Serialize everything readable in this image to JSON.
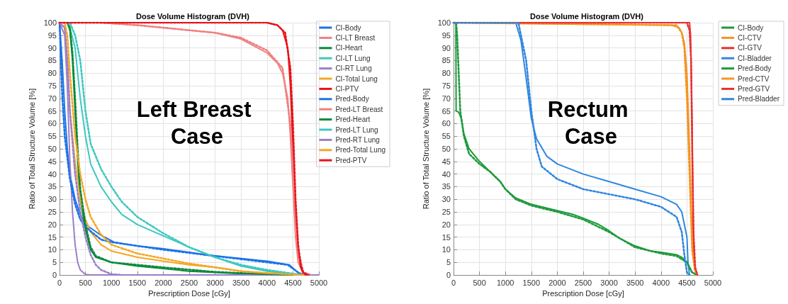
{
  "chart_data": [
    {
      "type": "line",
      "title": "Dose Volume Histogram (DVH)",
      "xlabel": "Prescription Dose [cGy]",
      "ylabel": "Ratio of Total Structure Volume [%]",
      "annotations": [
        "Left Breast Case"
      ],
      "xlim": [
        0,
        5000
      ],
      "xticks": [
        0,
        500,
        1000,
        1500,
        2000,
        2500,
        3000,
        3500,
        4000,
        4500,
        5000
      ],
      "ylim": [
        0,
        100
      ],
      "yticks": [
        0,
        5,
        10,
        15,
        20,
        25,
        30,
        35,
        40,
        45,
        50,
        55,
        60,
        65,
        70,
        75,
        80,
        85,
        90,
        95,
        100
      ],
      "grid": true,
      "legend": "right",
      "line_style": "solid",
      "series": [
        {
          "name": "CI-Body",
          "color": "#1a73e8",
          "x": [
            0,
            50,
            100,
            150,
            200,
            300,
            400,
            500,
            780,
            1050,
            1500,
            1970,
            2500,
            2880,
            3500,
            3790,
            4000,
            4430,
            4610,
            4700
          ],
          "values": [
            100,
            85,
            65,
            50,
            40,
            30,
            24,
            20,
            16,
            13,
            11.5,
            10.5,
            9,
            7.8,
            6.5,
            5.9,
            5.5,
            4,
            0.7,
            0
          ]
        },
        {
          "name": "CI-LT Breast",
          "color": "#f08080",
          "x": [
            0,
            800,
            1500,
            2500,
            3000,
            3500,
            4000,
            4200,
            4300,
            4400,
            4450,
            4500,
            4550,
            4600,
            4700,
            4800
          ],
          "values": [
            100,
            100,
            99,
            97,
            96,
            93.5,
            88,
            84,
            80,
            70,
            55,
            35,
            15,
            5,
            0.5,
            0
          ]
        },
        {
          "name": "CI-Heart",
          "color": "#0a8a3a",
          "x": [
            0,
            150,
            200,
            250,
            300,
            350,
            400,
            500,
            600,
            700,
            1000,
            1500,
            2000,
            2500,
            3000,
            3500,
            4000,
            4500
          ],
          "values": [
            100,
            100,
            97,
            85,
            65,
            45,
            30,
            18,
            10,
            7,
            5,
            3.5,
            2.5,
            1.5,
            1,
            0.5,
            0.2,
            0
          ]
        },
        {
          "name": "CI-LT Lung",
          "color": "#3cc8c0",
          "x": [
            0,
            150,
            200,
            300,
            400,
            500,
            600,
            800,
            1000,
            1200,
            1500,
            2000,
            2500,
            3000,
            3500,
            4000,
            4500,
            4700
          ],
          "values": [
            100,
            100,
            98,
            90,
            70,
            55,
            44,
            35,
            29,
            24,
            20,
            15.5,
            11,
            7,
            3.5,
            1.5,
            0.3,
            0
          ]
        },
        {
          "name": "CI-RT Lung",
          "color": "#9a7fc8",
          "x": [
            0,
            100,
            150,
            200,
            250,
            300,
            350,
            400,
            500,
            600,
            5000
          ],
          "values": [
            100,
            95,
            75,
            45,
            25,
            12,
            5,
            2,
            0.2,
            0,
            0
          ]
        },
        {
          "name": "CI-Total Lung",
          "color": "#f5a623",
          "x": [
            0,
            100,
            150,
            200,
            300,
            400,
            500,
            600,
            800,
            1000,
            1500,
            2000,
            2500,
            3000,
            3500,
            4000,
            4500,
            4600
          ],
          "values": [
            100,
            98,
            85,
            65,
            45,
            30,
            22,
            17,
            12,
            9.5,
            7,
            5.5,
            4,
            3,
            1.5,
            0.7,
            0.2,
            0
          ]
        },
        {
          "name": "CI-PTV",
          "color": "#e8131a",
          "x": [
            0,
            4000,
            4200,
            4300,
            4400,
            4450,
            4500,
            4550,
            4600,
            4650,
            4700,
            4750
          ],
          "values": [
            100,
            100,
            99,
            97,
            90,
            75,
            50,
            25,
            10,
            3,
            0.5,
            0
          ]
        },
        {
          "name": "Pred-Body",
          "color": "#1a73e8",
          "line_style": "dotted",
          "x": [
            0,
            50,
            100,
            200,
            300,
            400,
            500,
            800,
            1000,
            2000,
            3000,
            4000,
            4400,
            4600,
            4700
          ],
          "values": [
            100,
            72,
            55,
            38,
            28,
            22,
            19,
            14,
            13,
            10,
            7.5,
            5,
            4,
            1,
            0
          ]
        },
        {
          "name": "Pred-LT Breast",
          "color": "#f08080",
          "line_style": "dotted",
          "x": [
            0,
            800,
            1500,
            2500,
            3000,
            3500,
            4000,
            4300,
            4450,
            4500,
            4600,
            4700,
            4850
          ],
          "values": [
            100,
            100,
            99,
            97,
            96,
            94,
            89,
            82,
            60,
            42,
            10,
            1,
            0
          ]
        },
        {
          "name": "Pred-Heart",
          "color": "#0a8a3a",
          "line_style": "dotted",
          "x": [
            0,
            150,
            200,
            250,
            300,
            350,
            400,
            500,
            600,
            700,
            1000,
            1500,
            2000,
            3000,
            4000,
            4500
          ],
          "values": [
            100,
            100,
            98,
            88,
            70,
            50,
            34,
            20,
            11,
            7.5,
            5,
            4,
            3,
            1.2,
            0.3,
            0
          ]
        },
        {
          "name": "Pred-LT Lung",
          "color": "#3cc8c0",
          "line_style": "dotted",
          "x": [
            0,
            200,
            300,
            400,
            500,
            600,
            800,
            1000,
            1200,
            1500,
            2000,
            2500,
            3000,
            3500,
            4000,
            4500,
            4700
          ],
          "values": [
            100,
            100,
            95,
            85,
            65,
            52,
            42,
            35,
            29,
            23,
            16.5,
            11,
            7,
            4,
            2,
            0.5,
            0
          ]
        },
        {
          "name": "Pred-RT Lung",
          "color": "#9a7fc8",
          "line_style": "dotted",
          "x": [
            0,
            100,
            150,
            200,
            300,
            400,
            500,
            600,
            700,
            800,
            1000,
            1200
          ],
          "values": [
            100,
            98,
            85,
            65,
            40,
            25,
            15,
            8,
            4,
            2,
            0.3,
            0
          ]
        },
        {
          "name": "Pred-Total Lung",
          "color": "#f5a623",
          "line_style": "dotted",
          "x": [
            0,
            100,
            150,
            200,
            300,
            400,
            500,
            600,
            800,
            1000,
            1500,
            2000,
            2500,
            3000,
            3500,
            4000,
            4500,
            4700
          ],
          "values": [
            100,
            100,
            95,
            80,
            55,
            40,
            30,
            23,
            16,
            12,
            8.5,
            6.5,
            4.5,
            3,
            1.5,
            0.7,
            0.2,
            0
          ]
        },
        {
          "name": "Pred-PTV",
          "color": "#e8131a",
          "line_style": "dotted",
          "x": [
            0,
            4000,
            4200,
            4350,
            4450,
            4500,
            4550,
            4600,
            4650,
            4700,
            4800
          ],
          "values": [
            100,
            100,
            99,
            96,
            82,
            60,
            30,
            12,
            4,
            1,
            0
          ]
        }
      ]
    },
    {
      "type": "line",
      "title": "Dose Volume Histogram (DVH)",
      "xlabel": "Prescription Dose [cGy]",
      "ylabel": "Ratio of Total Structure Volume [%]",
      "annotations": [
        "Rectum Case"
      ],
      "xlim": [
        0,
        5000
      ],
      "xticks": [
        0,
        500,
        1000,
        1500,
        2000,
        2500,
        3000,
        3500,
        4000,
        4500,
        5000
      ],
      "ylim": [
        0,
        100
      ],
      "yticks": [
        0,
        5,
        10,
        15,
        20,
        25,
        30,
        35,
        40,
        45,
        50,
        55,
        60,
        65,
        70,
        75,
        80,
        85,
        90,
        95,
        100
      ],
      "grid": true,
      "legend": "right",
      "line_style": "solid",
      "series": [
        {
          "name": "CI-Body",
          "color": "#1e9a3c",
          "x": [
            0,
            45,
            50,
            100,
            150,
            200,
            300,
            500,
            700,
            900,
            1000,
            1200,
            1500,
            2000,
            2300,
            2500,
            2800,
            3000,
            3200,
            3500,
            3800,
            4000,
            4300,
            4400,
            4500,
            4600,
            4700
          ],
          "values": [
            100,
            100,
            65,
            64.5,
            62,
            56,
            50,
            45,
            41,
            37,
            34,
            30.5,
            28,
            25.5,
            24,
            22.5,
            20,
            17.5,
            14.5,
            11.5,
            9.5,
            9,
            8,
            7,
            5,
            1,
            0
          ]
        },
        {
          "name": "CI-CTV",
          "color": "#f59420",
          "x": [
            0,
            4200,
            4350,
            4400,
            4450,
            4500,
            4550,
            4600,
            4650,
            4700
          ],
          "values": [
            100,
            99,
            98,
            96,
            92,
            80,
            50,
            15,
            3,
            0
          ]
        },
        {
          "name": "CI-GTV",
          "color": "#e83030",
          "x": [
            0,
            4550,
            4570,
            4600,
            4620,
            4650,
            4700
          ],
          "values": [
            100,
            100,
            95,
            60,
            20,
            3,
            0
          ]
        },
        {
          "name": "CI-Bladder",
          "color": "#2f86e0",
          "x": [
            0,
            1200,
            1300,
            1400,
            1500,
            1600,
            1800,
            2000,
            2500,
            3000,
            3500,
            4000,
            4300,
            4400,
            4500,
            4520,
            4550
          ],
          "values": [
            100,
            100,
            93,
            78,
            62,
            54,
            47,
            44,
            40,
            37,
            34,
            31,
            28,
            25,
            15,
            5,
            0
          ]
        },
        {
          "name": "Pred-Body",
          "color": "#1e9a3c",
          "line_style": "dotted",
          "x": [
            0,
            50,
            70,
            100,
            130,
            200,
            300,
            500,
            700,
            900,
            1000,
            1200,
            1500,
            2000,
            2500,
            3000,
            3500,
            4000,
            4300,
            4500,
            4600,
            4700
          ],
          "values": [
            100,
            100,
            95,
            80,
            65,
            55,
            48,
            44,
            41,
            37,
            34,
            30,
            27.5,
            25,
            22,
            17,
            11,
            8.5,
            7.5,
            5,
            1,
            0
          ]
        },
        {
          "name": "Pred-CTV",
          "color": "#f59420",
          "line_style": "dotted",
          "x": [
            0,
            4300,
            4400,
            4450,
            4500,
            4550,
            4600,
            4650,
            4700
          ],
          "values": [
            100,
            99,
            96,
            90,
            70,
            40,
            10,
            2,
            0
          ]
        },
        {
          "name": "Pred-GTV",
          "color": "#e83030",
          "line_style": "dotted",
          "x": [
            0,
            4500,
            4550,
            4580,
            4600,
            4630,
            4660,
            4700
          ],
          "values": [
            100,
            100,
            97,
            85,
            50,
            15,
            3,
            0
          ]
        },
        {
          "name": "Pred-Bladder",
          "color": "#2f86e0",
          "line_style": "dotted",
          "x": [
            0,
            1250,
            1400,
            1500,
            1600,
            1700,
            2000,
            2500,
            3000,
            3500,
            4000,
            4300,
            4400,
            4450,
            4500,
            4550
          ],
          "values": [
            100,
            100,
            85,
            65,
            50,
            43,
            38,
            34,
            32,
            30,
            27,
            23,
            17,
            8,
            1,
            0
          ]
        }
      ]
    }
  ]
}
